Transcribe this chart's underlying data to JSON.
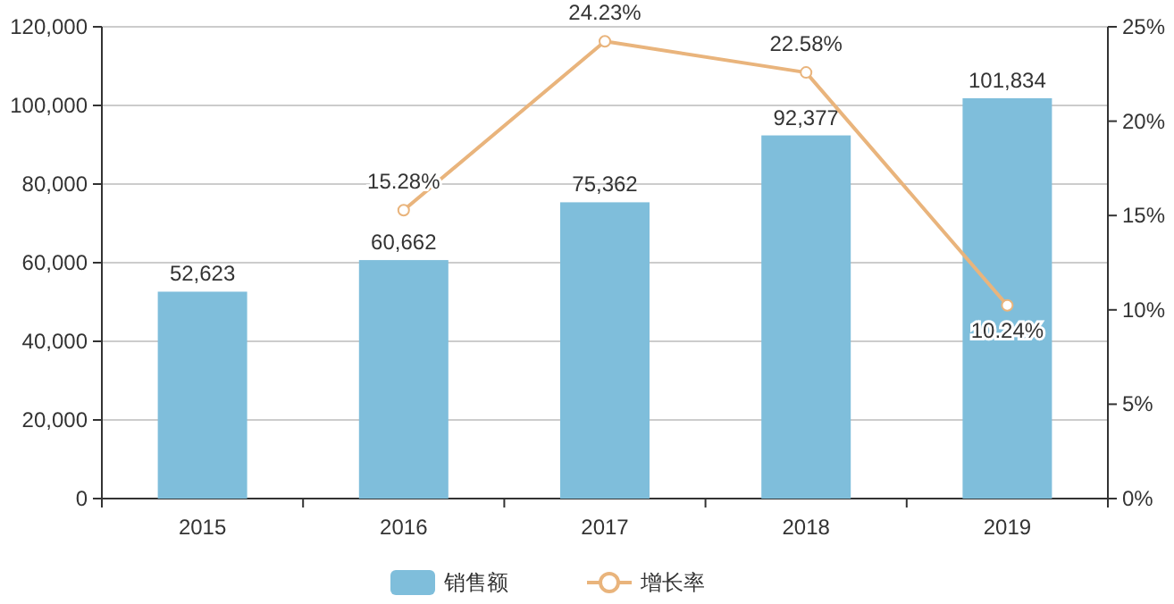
{
  "chart_data": {
    "type": "bar",
    "categories": [
      "2015",
      "2016",
      "2017",
      "2018",
      "2019"
    ],
    "series": [
      {
        "name": "销售额",
        "color": "#7fbedb",
        "values": [
          52623,
          60662,
          75362,
          92377,
          101834
        ],
        "value_labels": [
          "52,623",
          "60,662",
          "75,362",
          "92,377",
          "101,834"
        ]
      },
      {
        "name": "增长率",
        "type": "line",
        "axis": "y2",
        "color": "#e9b47c",
        "values": [
          null,
          15.28,
          24.23,
          22.58,
          10.24
        ],
        "value_labels": [
          null,
          "15.28%",
          "24.23%",
          "22.58%",
          "10.24%"
        ]
      }
    ],
    "ylim": [
      0,
      120000
    ],
    "yticks": [
      0,
      {
        "value": 20000,
        "label": "20,000"
      },
      {
        "value": 40000,
        "label": "40,000"
      },
      {
        "value": 60000,
        "label": "60,000"
      },
      {
        "value": 80000,
        "label": "80,000"
      },
      {
        "value": 100000,
        "label": "100,000"
      },
      {
        "value": 120000,
        "label": "120,000"
      }
    ],
    "y2lim": [
      0,
      25
    ],
    "y2ticks": [
      {
        "value": 0,
        "label": "0%"
      },
      {
        "value": 5,
        "label": "5%"
      },
      {
        "value": 10,
        "label": "10%"
      },
      {
        "value": 15,
        "label": "15%"
      },
      {
        "value": 20,
        "label": "20%"
      },
      {
        "value": 25,
        "label": "25%"
      }
    ],
    "grid": "y",
    "legend": "bottom",
    "marker": "circle"
  }
}
